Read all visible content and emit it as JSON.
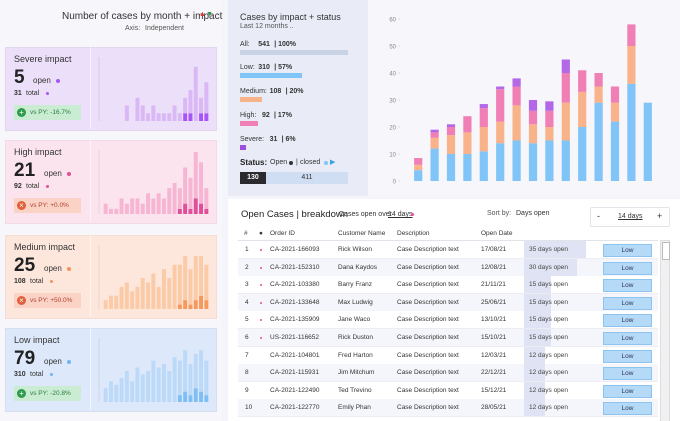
{
  "left_panel": {
    "title": "Number of cases by month + impact",
    "axis_label": "Axis:",
    "axis_value": "Independent"
  },
  "impact_cards": [
    {
      "title": "Severe impact",
      "open": 5,
      "open_label": "open",
      "total": 31,
      "total_label": "total",
      "vs": "vs PY: -16.7%",
      "trend": "down",
      "bg": "#ecdff9",
      "accent": "#a855f7"
    },
    {
      "title": "High impact",
      "open": 21,
      "open_label": "open",
      "total": 92,
      "total_label": "total",
      "vs": "vs PY: +0.0%",
      "trend": "up",
      "bg": "#fbe4ee",
      "accent": "#e0509a"
    },
    {
      "title": "Medium impact",
      "open": 25,
      "open_label": "open",
      "total": 108,
      "total_label": "total",
      "vs": "vs PY: +50.0%",
      "trend": "up",
      "bg": "#fde7dd",
      "accent": "#f2935a"
    },
    {
      "title": "Low impact",
      "open": 79,
      "open_label": "open",
      "total": 310,
      "total_label": "total",
      "vs": "vs PY: -20.8%",
      "trend": "down",
      "bg": "#dde9fa",
      "accent": "#6fb6f0"
    }
  ],
  "status_panel": {
    "title": "Cases by impact + status",
    "subtitle": "Last 12 months ..",
    "rows": [
      {
        "label": "All:",
        "value": 541,
        "share": "| 100%",
        "color": "#c9d3e6"
      },
      {
        "label": "Low:",
        "value": 310,
        "share": "| 57%",
        "color": "#80c4f8"
      },
      {
        "label": "Medium:",
        "value": 108,
        "share": "| 20%",
        "color": "#f9b38b"
      },
      {
        "label": "High:",
        "value": 92,
        "share": "| 17%",
        "color": "#ef7fb4"
      },
      {
        "label": "Severe:",
        "value": 31,
        "share": "| 6%",
        "color": "#9b4fdc"
      }
    ],
    "status_label": "Status:",
    "open_label": "Open",
    "sep": "|",
    "closed_label": "closed",
    "open_count": 130,
    "closed_count": 411
  },
  "chart_data": [
    {
      "type": "bar",
      "ylim": [
        0,
        8
      ],
      "series": [
        {
          "color": "#a855f7",
          "values": [
            0,
            0,
            0,
            0,
            0,
            0,
            0,
            0,
            0,
            0,
            0,
            0,
            0,
            0,
            0,
            1,
            1,
            0,
            1,
            1
          ]
        },
        {
          "color": "#d9b8f5",
          "values": [
            0,
            0,
            0,
            0,
            2,
            0,
            3,
            2,
            1,
            2,
            1,
            1,
            1,
            2,
            1,
            2,
            3,
            7,
            2,
            4
          ]
        }
      ]
    },
    {
      "type": "bar",
      "ylim": [
        0,
        12
      ],
      "series": [
        {
          "color": "#e0509a",
          "values": [
            0,
            0,
            0,
            0,
            0,
            0,
            0,
            0,
            0,
            0,
            0,
            0,
            0,
            0,
            1,
            2,
            1,
            3,
            2,
            1
          ]
        },
        {
          "color": "#f6b5d2",
          "values": [
            2,
            1,
            1,
            3,
            2,
            3,
            3,
            2,
            4,
            3,
            4,
            3,
            5,
            6,
            4,
            7,
            6,
            9,
            8,
            4
          ]
        }
      ]
    },
    {
      "type": "bar",
      "ylim": [
        0,
        14
      ],
      "series": [
        {
          "color": "#f59a5c",
          "values": [
            0,
            0,
            0,
            0,
            0,
            0,
            0,
            0,
            0,
            0,
            0,
            0,
            0,
            0,
            1,
            2,
            1,
            2,
            3,
            2
          ]
        },
        {
          "color": "#fbcaa6",
          "values": [
            2,
            3,
            3,
            5,
            6,
            4,
            5,
            7,
            6,
            8,
            5,
            9,
            7,
            10,
            9,
            10,
            8,
            10,
            9,
            8
          ]
        }
      ]
    },
    {
      "type": "bar",
      "ylim": [
        0,
        18
      ],
      "series": [
        {
          "color": "#7fbff5",
          "values": [
            0,
            0,
            0,
            0,
            0,
            0,
            0,
            0,
            0,
            0,
            0,
            0,
            0,
            0,
            2,
            3,
            2,
            4,
            3,
            2
          ]
        },
        {
          "color": "#bcd9f7",
          "values": [
            4,
            6,
            5,
            7,
            9,
            6,
            10,
            8,
            9,
            12,
            10,
            11,
            9,
            13,
            10,
            12,
            9,
            10,
            12,
            10
          ]
        }
      ]
    },
    {
      "type": "stacked_bar",
      "ylim": [
        0,
        60
      ],
      "yticks": [
        0,
        10,
        20,
        30,
        40,
        50,
        60
      ],
      "series": [
        {
          "color": "#80c4f8",
          "values": [
            4,
            12,
            10,
            10,
            11,
            14,
            15,
            14,
            15,
            15,
            20,
            29,
            22,
            36,
            29
          ]
        },
        {
          "color": "#f9b38b",
          "values": [
            2,
            4,
            7,
            8,
            9,
            8,
            13,
            7,
            5,
            14,
            13,
            6,
            7,
            14,
            0
          ]
        },
        {
          "color": "#ef7fb4",
          "values": [
            2.5,
            2,
            3,
            6,
            7,
            12,
            7,
            5,
            6,
            11,
            8,
            5,
            6,
            8,
            0
          ]
        },
        {
          "color": "#b368e8",
          "values": [
            0,
            1,
            1,
            0,
            1.5,
            1,
            3,
            4,
            3.5,
            5,
            0,
            0,
            0,
            0,
            0
          ]
        }
      ]
    }
  ],
  "table": {
    "title": "Open Cases | breakdown",
    "subtitle": "Cases open over",
    "subtitle_days": "14 days",
    "sort_label": "Sort by:",
    "sort_value": "Days open",
    "minus": "-",
    "stepper": "14 days",
    "plus": "+",
    "columns": [
      "#",
      "●",
      "Order ID",
      "Customer Name",
      "Description",
      "Open Date"
    ],
    "max_days": 35,
    "rows": [
      {
        "n": 1,
        "flag": true,
        "id": "CA-2021-166093",
        "name": "Rick Wilson",
        "desc": "Case Description text",
        "date": "17/08/21",
        "days": 35,
        "days_label": "35 days open",
        "impact": "Low"
      },
      {
        "n": 2,
        "flag": true,
        "id": "CA-2021-152310",
        "name": "Dana Kaydos",
        "desc": "Case Description text",
        "date": "12/08/21",
        "days": 30,
        "days_label": "30 days open",
        "impact": "Low"
      },
      {
        "n": 3,
        "flag": true,
        "id": "CA-2021-103380",
        "name": "Barry Franz",
        "desc": "Case Description text",
        "date": "21/11/21",
        "days": 15,
        "days_label": "15 days open",
        "impact": "Low"
      },
      {
        "n": 4,
        "flag": true,
        "id": "CA-2021-133648",
        "name": "Max Ludwig",
        "desc": "Case Description text",
        "date": "25/06/21",
        "days": 15,
        "days_label": "15 days open",
        "impact": "Low"
      },
      {
        "n": 5,
        "flag": true,
        "id": "CA-2021-135909",
        "name": "Jane Waco",
        "desc": "Case Description text",
        "date": "13/10/21",
        "days": 15,
        "days_label": "15 days open",
        "impact": "Low"
      },
      {
        "n": 6,
        "flag": true,
        "id": "US-2021-116652",
        "name": "Rick Duston",
        "desc": "Case Description text",
        "date": "15/10/21",
        "days": 15,
        "days_label": "15 days open",
        "impact": "Low"
      },
      {
        "n": 7,
        "flag": false,
        "id": "CA-2021-104801",
        "name": "Fred Harton",
        "desc": "Case Description text",
        "date": "12/03/21",
        "days": 12,
        "days_label": "12 days open",
        "impact": "Low"
      },
      {
        "n": 8,
        "flag": false,
        "id": "CA-2021-115931",
        "name": "Jim Mitchum",
        "desc": "Case Description text",
        "date": "22/12/21",
        "days": 12,
        "days_label": "12 days open",
        "impact": "Low"
      },
      {
        "n": 9,
        "flag": false,
        "id": "CA-2021-122490",
        "name": "Ted Trevino",
        "desc": "Case Description text",
        "date": "15/12/21",
        "days": 12,
        "days_label": "12 days open",
        "impact": "Low"
      },
      {
        "n": 10,
        "flag": false,
        "id": "CA-2021-122770",
        "name": "Emily Phan",
        "desc": "Case Description text",
        "date": "28/05/21",
        "days": 12,
        "days_label": "12 days open",
        "impact": "Low"
      }
    ]
  }
}
